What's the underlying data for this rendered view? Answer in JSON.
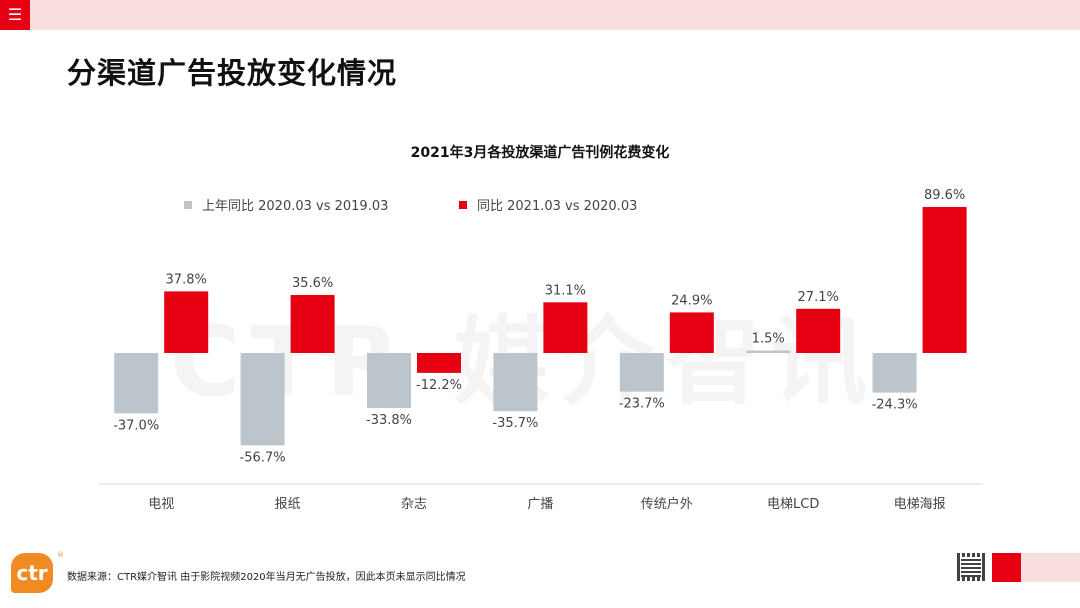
{
  "header": {
    "menu_icon": "☰",
    "title": "分渠道广告投放变化情况"
  },
  "watermark": "CTR 媒介智讯",
  "footer": {
    "logo_text": "ctr",
    "logo_mark": "®",
    "source": "数据来源：CTR媒介智讯   由于影院视频2020年当月无广告投放，因此本页未显示同比情况"
  },
  "chart_data": {
    "type": "bar",
    "title": "2021年3月各投放渠道广告刊例花费变化",
    "categories": [
      "电视",
      "报纸",
      "杂志",
      "广播",
      "传统户外",
      "电梯LCD",
      "电梯海报"
    ],
    "series": [
      {
        "name": "上年同比 2020.03 vs 2019.03",
        "color": "#bcc4cc",
        "values": [
          -37.0,
          -56.7,
          -33.8,
          -35.7,
          -23.7,
          1.5,
          -24.3
        ],
        "labels": [
          "-37.0%",
          "-56.7%",
          "-33.8%",
          "-35.7%",
          "-23.7%",
          "1.5%",
          "-24.3%"
        ]
      },
      {
        "name": "同比 2021.03 vs 2020.03",
        "color": "#e60012",
        "values": [
          37.8,
          35.6,
          -12.2,
          31.1,
          24.9,
          27.1,
          89.6
        ],
        "labels": [
          "37.8%",
          "35.6%",
          "-12.2%",
          "31.1%",
          "24.9%",
          "27.1%",
          "89.6%"
        ]
      }
    ],
    "xlabel": "",
    "ylabel": "",
    "ylim": [
      -60,
      90
    ],
    "legend": "top"
  }
}
